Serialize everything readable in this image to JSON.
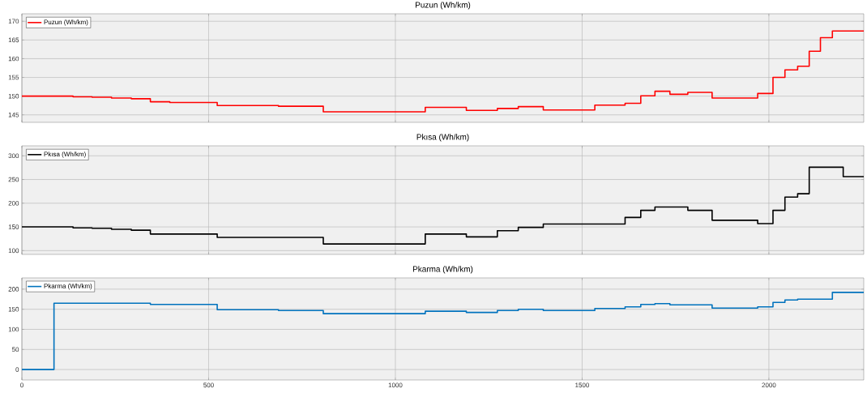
{
  "chart_data": [
    {
      "type": "step",
      "title": "Puzun (Wh/km)",
      "x": [
        0,
        137,
        188,
        240,
        293,
        344,
        396,
        523,
        687,
        807,
        1080,
        1190,
        1273,
        1329,
        1396,
        1534,
        1615,
        1657,
        1695,
        1735,
        1783,
        1848,
        1970,
        2011,
        2043,
        2077,
        2108,
        2138,
        2170,
        2254
      ],
      "series": [
        {
          "name": "Puzun (Wh/km)",
          "color": "#ff0000",
          "values": [
            150,
            149.8,
            149.7,
            149.5,
            149.3,
            148.5,
            148.3,
            147.5,
            147.3,
            145.8,
            147,
            146.2,
            146.7,
            147.2,
            146.3,
            147.6,
            148.1,
            150.1,
            151.3,
            150.5,
            151,
            149.5,
            150.7,
            155,
            157,
            158,
            162,
            165.6,
            167.4,
            167.4
          ]
        }
      ],
      "xlim": [
        0,
        2254
      ],
      "xticks": [
        0,
        500,
        1000,
        1500,
        2000
      ],
      "ylim": [
        143,
        172
      ],
      "yticks": [
        145,
        150,
        155,
        160,
        165,
        170
      ],
      "grid": true,
      "legend": "top left",
      "tick_labels": "y"
    },
    {
      "type": "step",
      "title": "Pkısa (Wh/km)",
      "x": [
        0,
        137,
        188,
        240,
        293,
        344,
        523,
        807,
        1080,
        1190,
        1273,
        1329,
        1396,
        1615,
        1657,
        1695,
        1783,
        1848,
        1970,
        2011,
        2043,
        2077,
        2108,
        2199,
        2254
      ],
      "series": [
        {
          "name": "Pkısa (Wh/km)",
          "color": "#000000",
          "values": [
            150,
            148,
            147,
            145,
            143,
            135,
            128,
            114,
            135,
            129,
            142,
            149,
            156,
            170,
            185,
            192,
            185,
            164,
            157,
            185,
            213,
            220,
            276,
            256,
            256
          ]
        }
      ],
      "xlim": [
        0,
        2254
      ],
      "xticks": [
        0,
        500,
        1000,
        1500,
        2000
      ],
      "ylim": [
        92,
        321
      ],
      "yticks": [
        100,
        150,
        200,
        250,
        300
      ],
      "grid": true,
      "legend": "top left",
      "tick_labels": "y"
    },
    {
      "type": "step",
      "title": "Pkarma (Wh/km)",
      "x": [
        0,
        86,
        344,
        523,
        687,
        807,
        1080,
        1190,
        1273,
        1329,
        1396,
        1534,
        1615,
        1657,
        1695,
        1735,
        1783,
        1848,
        1970,
        2011,
        2043,
        2077,
        2170,
        2254
      ],
      "series": [
        {
          "name": "Pkarma (Wh/km)",
          "color": "#0072bd",
          "values": [
            0,
            165,
            162,
            149,
            147,
            139,
            145,
            142,
            147,
            150,
            147,
            152,
            156,
            162,
            164,
            161,
            161,
            153,
            156,
            167,
            173,
            175,
            192,
            192
          ]
        }
      ],
      "xlim": [
        0,
        2254
      ],
      "xticks": [
        0,
        500,
        1000,
        1500,
        2000
      ],
      "ylim": [
        -26,
        228
      ],
      "yticks": [
        0,
        50,
        100,
        150,
        200
      ],
      "grid": true,
      "legend": "top left"
    }
  ]
}
